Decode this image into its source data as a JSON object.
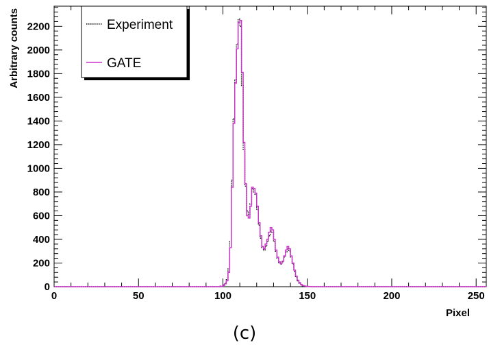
{
  "chart_data": {
    "type": "line",
    "title": "",
    "xlabel": "Pixel",
    "ylabel": "Arbitrary counts",
    "caption": "(c)",
    "xlim": [
      0,
      256
    ],
    "ylim": [
      0,
      2370
    ],
    "x_ticks": [
      0,
      50,
      100,
      150,
      200,
      250
    ],
    "y_ticks": [
      0,
      200,
      400,
      600,
      800,
      1000,
      1200,
      1400,
      1600,
      1800,
      2000,
      2200
    ],
    "grid": false,
    "legend_position": "top-left",
    "series": [
      {
        "name": "Experiment",
        "style": "dotted",
        "color": "#000000",
        "x": [
          0,
          90,
          95,
          98,
          100,
          101,
          102,
          103,
          104,
          105,
          106,
          107,
          108,
          109,
          110,
          111,
          112,
          113,
          114,
          115,
          116,
          117,
          118,
          119,
          120,
          121,
          122,
          123,
          124,
          125,
          126,
          127,
          128,
          129,
          130,
          131,
          132,
          133,
          134,
          135,
          136,
          137,
          138,
          139,
          140,
          141,
          142,
          143,
          144,
          145,
          146,
          147,
          148,
          149,
          150,
          151,
          152,
          153,
          155,
          160,
          256
        ],
        "values": [
          0,
          0,
          0,
          5,
          15,
          30,
          60,
          150,
          380,
          900,
          1420,
          1750,
          2050,
          2260,
          2200,
          1700,
          1160,
          850,
          640,
          610,
          700,
          830,
          800,
          780,
          650,
          520,
          410,
          330,
          310,
          340,
          380,
          430,
          470,
          460,
          380,
          300,
          240,
          200,
          190,
          210,
          250,
          290,
          320,
          300,
          250,
          190,
          130,
          80,
          50,
          30,
          15,
          8,
          5,
          3,
          2,
          1,
          0,
          0,
          0,
          0,
          0
        ]
      },
      {
        "name": "GATE",
        "style": "solid",
        "color": "#cc33cc",
        "x": [
          0,
          90,
          95,
          98,
          100,
          101,
          102,
          103,
          104,
          105,
          106,
          107,
          108,
          109,
          110,
          111,
          112,
          113,
          114,
          115,
          116,
          117,
          118,
          119,
          120,
          121,
          122,
          123,
          124,
          125,
          126,
          127,
          128,
          129,
          130,
          131,
          132,
          133,
          134,
          135,
          136,
          137,
          138,
          139,
          140,
          141,
          142,
          143,
          144,
          145,
          146,
          147,
          148,
          149,
          150,
          151,
          152,
          153,
          155,
          160,
          256
        ],
        "values": [
          0,
          0,
          0,
          3,
          10,
          25,
          50,
          120,
          330,
          840,
          1380,
          1720,
          2010,
          2230,
          2250,
          1810,
          1220,
          870,
          600,
          580,
          680,
          840,
          830,
          790,
          680,
          540,
          430,
          340,
          320,
          360,
          400,
          460,
          500,
          480,
          400,
          310,
          250,
          210,
          195,
          215,
          260,
          310,
          340,
          320,
          260,
          200,
          140,
          90,
          55,
          35,
          18,
          10,
          6,
          3,
          2,
          1,
          0,
          0,
          0,
          0,
          0
        ]
      }
    ]
  }
}
